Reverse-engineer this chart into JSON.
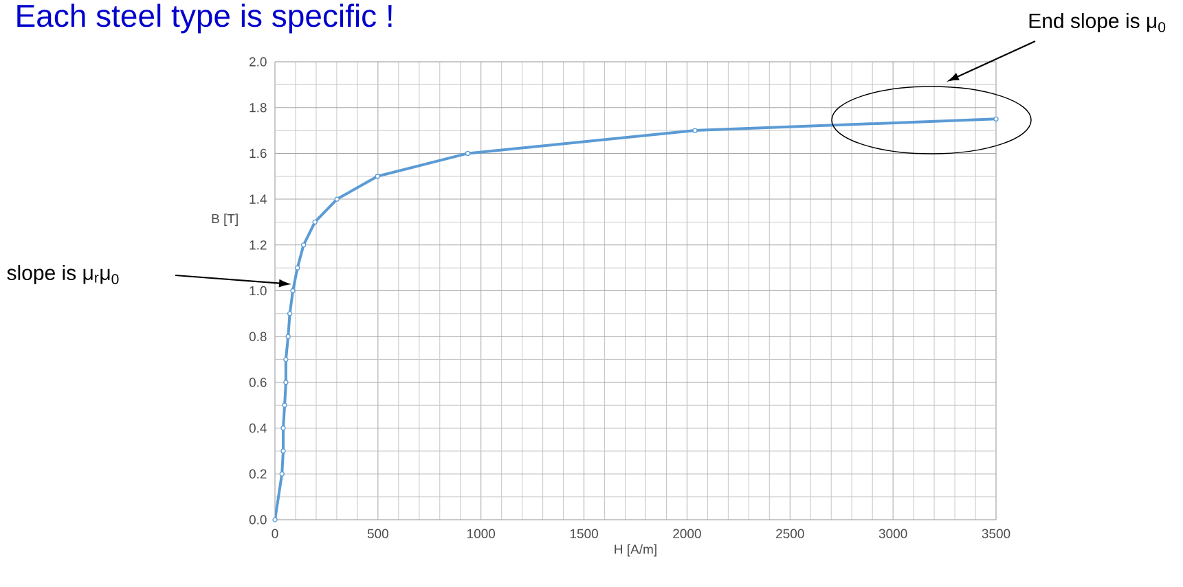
{
  "chart_data": {
    "type": "line",
    "title": "Each steel type is specific !",
    "xlabel": "H [A/m]",
    "ylabel": "B [T]",
    "x": [
      0,
      34,
      40,
      40,
      47,
      53,
      53,
      64,
      72,
      87,
      109,
      139,
      194,
      301,
      498,
      936,
      2039,
      3500
    ],
    "series": [
      {
        "color": "#5b9bd5",
        "values": [
          0.0,
          0.2,
          0.3,
          0.4,
          0.5,
          0.6,
          0.7,
          0.8,
          0.9,
          1.0,
          1.1,
          1.2,
          1.3,
          1.4,
          1.5,
          1.6,
          1.7,
          1.75
        ]
      }
    ],
    "xlim": [
      0,
      3500
    ],
    "ylim": [
      0,
      2.0
    ],
    "xticks": [
      0,
      500,
      1000,
      1500,
      2000,
      2500,
      3000,
      3500
    ],
    "yticks": [
      {
        "value": 0,
        "label": "0.0"
      },
      {
        "value": 0.2,
        "label": "0.2"
      },
      {
        "value": 0.4,
        "label": "0.4"
      },
      {
        "value": 0.6,
        "label": "0.6"
      },
      {
        "value": 0.8,
        "label": "0.8"
      },
      {
        "value": 1.0,
        "label": "1.0"
      },
      {
        "value": 1.2,
        "label": "1.2"
      },
      {
        "value": 1.4,
        "label": "1.4"
      },
      {
        "value": 1.6,
        "label": "1.6"
      },
      {
        "value": 1.8,
        "label": "1.8"
      },
      {
        "value": 2.0,
        "label": "2.0"
      }
    ],
    "grid": true,
    "marker": "circle",
    "line_style": "solid",
    "annotations": [
      "End slope is μ$_{0}$",
      "slope is μ$_{r}$μ$_{0}$"
    ]
  }
}
